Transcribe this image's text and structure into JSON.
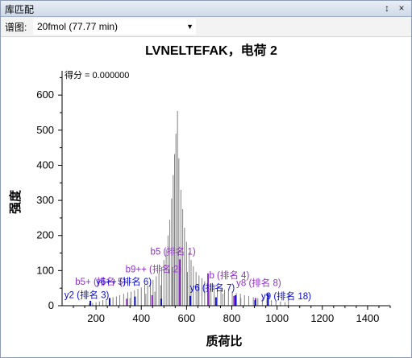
{
  "window": {
    "title": "库匹配",
    "pin_glyph": "↕",
    "close_glyph": "×"
  },
  "toolbar": {
    "spectrum_label": "谱图:",
    "spectrum_value": "20fmol (77.77 min)",
    "dropdown_arrow": "▼"
  },
  "chart_data": {
    "type": "bar",
    "title": "LVNELTEFAK，电荷 2",
    "score_text": "得分 = 0.000000",
    "xlabel": "质荷比",
    "ylabel": "强度",
    "xlim": [
      50,
      1500
    ],
    "ylim": [
      0,
      660
    ],
    "x_ticks": [
      200,
      400,
      600,
      800,
      1000,
      1200,
      1400
    ],
    "y_ticks": [
      0,
      100,
      200,
      300,
      400,
      500,
      600
    ],
    "colors": {
      "unmatched": "#808080",
      "y_ion": "#0a0ad0",
      "b_ion": "#9030c8",
      "axis": "#000000"
    },
    "peaks": [
      {
        "x": 560,
        "y": 555
      },
      {
        "x": 553,
        "y": 490
      },
      {
        "x": 547,
        "y": 432
      },
      {
        "x": 566,
        "y": 420
      },
      {
        "x": 541,
        "y": 372
      },
      {
        "x": 575,
        "y": 330
      },
      {
        "x": 534,
        "y": 305
      },
      {
        "x": 583,
        "y": 275
      },
      {
        "x": 526,
        "y": 245
      },
      {
        "x": 591,
        "y": 222
      },
      {
        "x": 518,
        "y": 200
      },
      {
        "x": 600,
        "y": 182
      },
      {
        "x": 510,
        "y": 160
      },
      {
        "x": 612,
        "y": 152
      },
      {
        "x": 500,
        "y": 130
      },
      {
        "x": 620,
        "y": 130
      },
      {
        "x": 490,
        "y": 110
      },
      {
        "x": 630,
        "y": 112
      },
      {
        "x": 478,
        "y": 92
      },
      {
        "x": 642,
        "y": 96
      },
      {
        "x": 466,
        "y": 84
      },
      {
        "x": 655,
        "y": 86
      },
      {
        "x": 452,
        "y": 74
      },
      {
        "x": 668,
        "y": 78
      },
      {
        "x": 440,
        "y": 66
      },
      {
        "x": 680,
        "y": 70
      },
      {
        "x": 428,
        "y": 58
      },
      {
        "x": 694,
        "y": 66
      },
      {
        "x": 415,
        "y": 60
      },
      {
        "x": 708,
        "y": 62
      },
      {
        "x": 400,
        "y": 52
      },
      {
        "x": 722,
        "y": 58
      },
      {
        "x": 385,
        "y": 48
      },
      {
        "x": 736,
        "y": 54
      },
      {
        "x": 370,
        "y": 44
      },
      {
        "x": 752,
        "y": 50
      },
      {
        "x": 355,
        "y": 40
      },
      {
        "x": 768,
        "y": 46
      },
      {
        "x": 340,
        "y": 38
      },
      {
        "x": 785,
        "y": 42
      },
      {
        "x": 322,
        "y": 34
      },
      {
        "x": 802,
        "y": 40
      },
      {
        "x": 305,
        "y": 30
      },
      {
        "x": 820,
        "y": 36
      },
      {
        "x": 290,
        "y": 26
      },
      {
        "x": 838,
        "y": 34
      },
      {
        "x": 275,
        "y": 24
      },
      {
        "x": 856,
        "y": 30
      },
      {
        "x": 260,
        "y": 20
      },
      {
        "x": 875,
        "y": 28
      },
      {
        "x": 245,
        "y": 18
      },
      {
        "x": 895,
        "y": 24
      },
      {
        "x": 230,
        "y": 16
      },
      {
        "x": 915,
        "y": 22
      },
      {
        "x": 215,
        "y": 12
      },
      {
        "x": 935,
        "y": 20
      },
      {
        "x": 200,
        "y": 10
      },
      {
        "x": 955,
        "y": 18
      },
      {
        "x": 185,
        "y": 8
      },
      {
        "x": 975,
        "y": 16
      },
      {
        "x": 170,
        "y": 6
      },
      {
        "x": 995,
        "y": 14
      },
      {
        "x": 1015,
        "y": 12
      },
      {
        "x": 1035,
        "y": 10
      },
      {
        "x": 1050,
        "y": 36
      },
      {
        "x": 572,
        "y": 92
      },
      {
        "x": 538,
        "y": 110
      },
      {
        "x": 604,
        "y": 96
      },
      {
        "x": 486,
        "y": 58
      },
      {
        "x": 650,
        "y": 60
      },
      {
        "x": 460,
        "y": 40
      },
      {
        "x": 700,
        "y": 44
      },
      {
        "x": 420,
        "y": 34
      },
      {
        "x": 760,
        "y": 34
      },
      {
        "x": 350,
        "y": 22
      },
      {
        "x": 840,
        "y": 22
      }
    ],
    "y_ion_peaks": [
      {
        "x": 175,
        "y": 14
      },
      {
        "x": 260,
        "y": 22
      },
      {
        "x": 372,
        "y": 26
      },
      {
        "x": 488,
        "y": 20
      },
      {
        "x": 617,
        "y": 28
      },
      {
        "x": 730,
        "y": 24
      },
      {
        "x": 817,
        "y": 30
      },
      {
        "x": 903,
        "y": 16
      },
      {
        "x": 960,
        "y": 34
      }
    ],
    "b_ion_peaks": [
      {
        "x": 336,
        "y": 20
      },
      {
        "x": 448,
        "y": 30
      },
      {
        "x": 570,
        "y": 132
      },
      {
        "x": 695,
        "y": 92
      },
      {
        "x": 810,
        "y": 28
      },
      {
        "x": 905,
        "y": 22
      }
    ],
    "annotations": [
      {
        "text": "b5 (排名 1)",
        "x": 440,
        "y": 145,
        "color": "#9030c8"
      },
      {
        "text": "b9++ (排名 2)",
        "x": 330,
        "y": 95,
        "color": "#9030c8"
      },
      {
        "text": "b5+ (排名 5)",
        "x": 108,
        "y": 60,
        "color": "#9030c8"
      },
      {
        "text": "y6++ (排名 6)",
        "x": 200,
        "y": 60,
        "color": "#0a0ad0"
      },
      {
        "text": "y2 (排名 3)",
        "x": 60,
        "y": 22,
        "color": "#0a0ad0"
      },
      {
        "text": "b (排名 4)",
        "x": 700,
        "y": 78,
        "color": "#9030c8"
      },
      {
        "text": "y6 (排名 7)",
        "x": 615,
        "y": 42,
        "color": "#0a0ad0"
      },
      {
        "text": "y8 (排名 8)",
        "x": 820,
        "y": 56,
        "color": "#9030c8"
      },
      {
        "text": "y9 (排名 18)",
        "x": 930,
        "y": 18,
        "color": "#0a0ad0"
      }
    ]
  }
}
